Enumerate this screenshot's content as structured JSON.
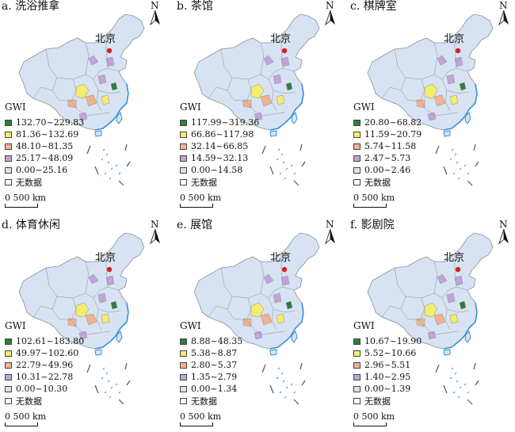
{
  "panels": [
    {
      "title": "a. 洗浴推拿",
      "legend_title": "GWI",
      "legend": [
        {
          "label": "132.70~229.83",
          "color": "#2f7d3a"
        },
        {
          "label": "81.36~132.69",
          "color": "#f4ec6c"
        },
        {
          "label": "48.10~81.35",
          "color": "#f2b28f"
        },
        {
          "label": "25.17~48.09",
          "color": "#c3a3d8"
        },
        {
          "label": "0.00~25.16",
          "color": "#d7e3f2"
        },
        {
          "label": "无数据",
          "color": "#ffffff"
        }
      ]
    },
    {
      "title": "b. 茶馆",
      "legend_title": "GWI",
      "legend": [
        {
          "label": "117.99~319.36",
          "color": "#2f7d3a"
        },
        {
          "label": "66.86~117.98",
          "color": "#f4ec6c"
        },
        {
          "label": "32.14~66.85",
          "color": "#f2b28f"
        },
        {
          "label": "14.59~32.13",
          "color": "#c3a3d8"
        },
        {
          "label": "0.00~14.58",
          "color": "#d7e3f2"
        },
        {
          "label": "无数据",
          "color": "#ffffff"
        }
      ]
    },
    {
      "title": "c. 棋牌室",
      "legend_title": "GWI",
      "legend": [
        {
          "label": "20.80~68.82",
          "color": "#2f7d3a"
        },
        {
          "label": "11.59~20.79",
          "color": "#f4ec6c"
        },
        {
          "label": "5.74~11.58",
          "color": "#f2b28f"
        },
        {
          "label": "2.47~5.73",
          "color": "#c3a3d8"
        },
        {
          "label": "0.00~2.46",
          "color": "#d7e3f2"
        },
        {
          "label": "无数据",
          "color": "#ffffff"
        }
      ]
    },
    {
      "title": "d. 体育休闲",
      "legend_title": "GWI",
      "legend": [
        {
          "label": "102.61~183.80",
          "color": "#2f7d3a"
        },
        {
          "label": "49.97~102.60",
          "color": "#f4ec6c"
        },
        {
          "label": "22.79~49.96",
          "color": "#f2b28f"
        },
        {
          "label": "10.31~22.78",
          "color": "#c3a3d8"
        },
        {
          "label": "0.00~10.30",
          "color": "#d7e3f2"
        },
        {
          "label": "无数据",
          "color": "#ffffff"
        }
      ]
    },
    {
      "title": "e. 展馆",
      "legend_title": "GWI",
      "legend": [
        {
          "label": "8.88~48.35",
          "color": "#2f7d3a"
        },
        {
          "label": "5.38~8.87",
          "color": "#f4ec6c"
        },
        {
          "label": "2.80~5.37",
          "color": "#f2b28f"
        },
        {
          "label": "1.35~2.79",
          "color": "#c3a3d8"
        },
        {
          "label": "0.00~1.34",
          "color": "#d7e3f2"
        },
        {
          "label": "无数据",
          "color": "#ffffff"
        }
      ]
    },
    {
      "title": "f. 影剧院",
      "legend_title": "GWI",
      "legend": [
        {
          "label": "10.67~19.90",
          "color": "#2f7d3a"
        },
        {
          "label": "5.52~10.66",
          "color": "#f4ec6c"
        },
        {
          "label": "2.96~5.51",
          "color": "#f2b28f"
        },
        {
          "label": "1.40~2.95",
          "color": "#c3a3d8"
        },
        {
          "label": "0.00~1.39",
          "color": "#d7e3f2"
        },
        {
          "label": "无数据",
          "color": "#ffffff"
        }
      ]
    }
  ],
  "capital_label": "北京",
  "north_label": "N",
  "scale_label": "0  500 km",
  "map_colors": {
    "base": "#d7e3f2",
    "border": "#8a8f99",
    "coast": "#3a8fd6",
    "capital": "#d62020"
  }
}
